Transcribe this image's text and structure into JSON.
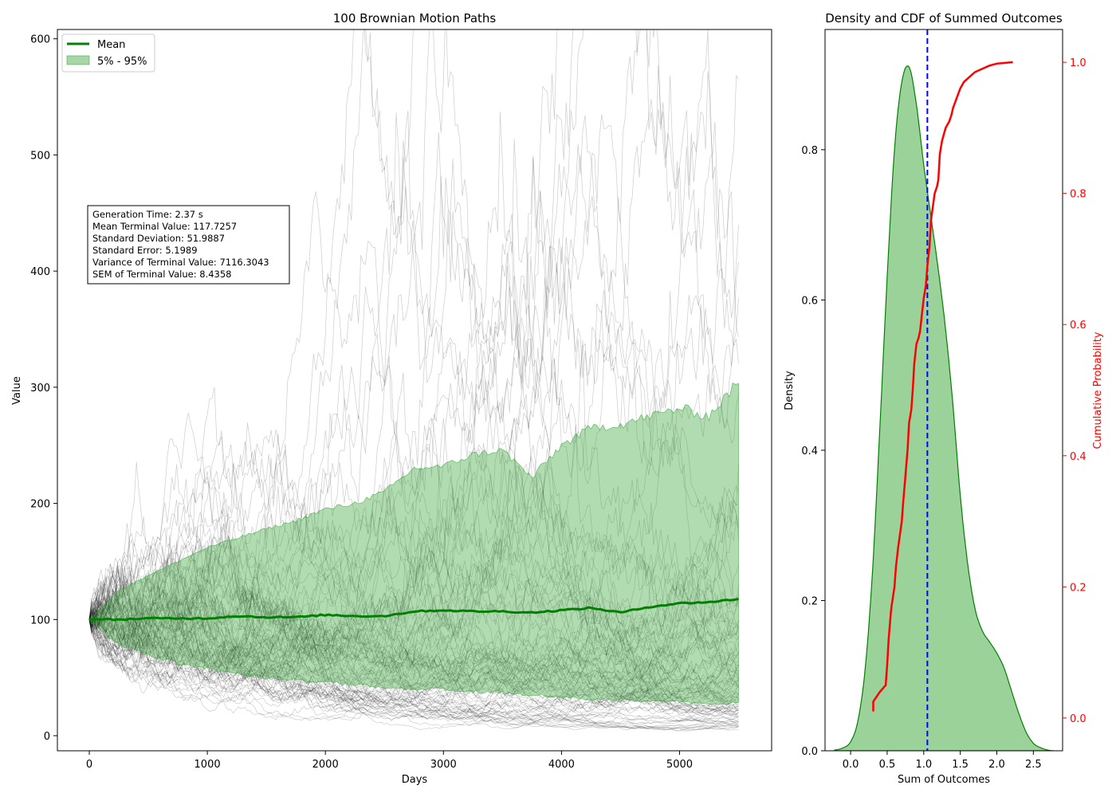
{
  "chart_data": [
    {
      "type": "line",
      "title": "100 Brownian Motion Paths",
      "xlabel": "Days",
      "ylabel": "Value",
      "xlim": [
        -270,
        5780
      ],
      "ylim": [
        -13,
        608
      ],
      "xticks": [
        0,
        1000,
        2000,
        3000,
        4000,
        5000
      ],
      "yticks": [
        0,
        100,
        200,
        300,
        400,
        500,
        600
      ],
      "grid": false,
      "legend_position": "top-left",
      "n_paths": 100,
      "n_days": 5500,
      "start_value": 100,
      "series": [
        {
          "name": "Mean",
          "color": "#008000",
          "x": [
            0,
            250,
            500,
            750,
            1000,
            1250,
            1500,
            1750,
            2000,
            2250,
            2500,
            2750,
            3000,
            3250,
            3500,
            3750,
            4000,
            4250,
            4500,
            4750,
            5000,
            5250,
            5500
          ],
          "values": [
            100,
            100,
            101,
            101,
            101,
            103,
            102,
            102,
            104,
            103,
            103,
            107,
            108,
            107,
            107,
            106,
            108,
            110,
            106,
            111,
            114,
            115,
            117.7
          ]
        },
        {
          "name": "5% - 95%",
          "type": "area",
          "color": "#2ca02c",
          "x": [
            0,
            250,
            500,
            750,
            1000,
            1250,
            1500,
            1750,
            2000,
            2250,
            2500,
            2750,
            3000,
            3250,
            3500,
            3750,
            4000,
            4250,
            4500,
            4750,
            5000,
            5250,
            5500
          ],
          "upper": [
            100,
            125,
            138,
            150,
            162,
            170,
            178,
            185,
            195,
            200,
            210,
            230,
            232,
            242,
            246,
            222,
            250,
            265,
            268,
            275,
            282,
            275,
            305
          ],
          "lower": [
            100,
            78,
            70,
            62,
            58,
            53,
            50,
            48,
            46,
            44,
            42,
            40,
            40,
            38,
            37,
            35,
            34,
            32,
            31,
            30,
            29,
            28,
            28
          ]
        }
      ],
      "annotation": [
        "Generation Time: 2.37 s",
        "Mean Terminal Value: 117.7257",
        "Standard Deviation: 51.9887",
        "Standard Error: 5.1989",
        "Variance of Terminal Value: 7116.3043",
        "SEM of Terminal Value: 8.4358"
      ]
    },
    {
      "type": "area",
      "title": "Density and CDF of Summed Outcomes",
      "xlabel": "Sum of Outcomes",
      "ylabel": "Density",
      "y2label": "Cumulative Probability",
      "xlim": [
        -0.35,
        2.9
      ],
      "ylim": [
        0,
        0.96
      ],
      "y2lim": [
        -0.05,
        1.05
      ],
      "xticks": [
        "0.0",
        "0.5",
        "1.0",
        "1.5",
        "2.0",
        "2.5"
      ],
      "yticks": [
        "0.0",
        "0.2",
        "0.4",
        "0.6",
        "0.8"
      ],
      "y2ticks": [
        "0.0",
        "0.2",
        "0.4",
        "0.6",
        "0.8",
        "1.0"
      ],
      "density": {
        "color": "#008000",
        "x": [
          -0.22,
          -0.1,
          0.0,
          0.1,
          0.2,
          0.3,
          0.4,
          0.5,
          0.6,
          0.7,
          0.8,
          0.9,
          1.0,
          1.1,
          1.2,
          1.3,
          1.4,
          1.5,
          1.6,
          1.7,
          1.8,
          1.9,
          2.0,
          2.1,
          2.2,
          2.3,
          2.4,
          2.5,
          2.6,
          2.7,
          2.78
        ],
        "values": [
          0.001,
          0.004,
          0.012,
          0.04,
          0.11,
          0.24,
          0.43,
          0.63,
          0.8,
          0.89,
          0.91,
          0.86,
          0.78,
          0.71,
          0.64,
          0.56,
          0.46,
          0.34,
          0.25,
          0.19,
          0.16,
          0.145,
          0.13,
          0.11,
          0.08,
          0.05,
          0.025,
          0.01,
          0.004,
          0.001,
          0.0
        ]
      },
      "mean_line": {
        "x": 1.05,
        "color": "#0000ff",
        "style": "dashed"
      },
      "cdf": {
        "color": "#ff0000",
        "x": [
          0.31,
          0.31,
          0.4,
          0.48,
          0.5,
          0.52,
          0.55,
          0.56,
          0.6,
          0.62,
          0.65,
          0.7,
          0.72,
          0.75,
          0.78,
          0.8,
          0.83,
          0.85,
          0.87,
          0.9,
          0.93,
          0.95,
          0.97,
          1.0,
          1.03,
          1.05,
          1.08,
          1.1,
          1.15,
          1.18,
          1.2,
          1.22,
          1.25,
          1.3,
          1.35,
          1.38,
          1.4,
          1.45,
          1.5,
          1.55,
          1.6,
          1.65,
          1.7,
          1.8,
          1.9,
          2.0,
          2.1,
          2.2,
          2.22
        ],
        "values": [
          0.01,
          0.025,
          0.04,
          0.05,
          0.08,
          0.12,
          0.16,
          0.17,
          0.2,
          0.23,
          0.26,
          0.3,
          0.33,
          0.37,
          0.41,
          0.45,
          0.47,
          0.5,
          0.54,
          0.57,
          0.58,
          0.59,
          0.61,
          0.64,
          0.66,
          0.69,
          0.72,
          0.76,
          0.8,
          0.81,
          0.82,
          0.86,
          0.88,
          0.9,
          0.91,
          0.92,
          0.93,
          0.945,
          0.96,
          0.97,
          0.975,
          0.98,
          0.985,
          0.99,
          0.995,
          0.998,
          0.999,
          1.0,
          1.0
        ]
      }
    }
  ],
  "legend": [
    {
      "label": "Mean",
      "kind": "line",
      "color": "#008000"
    },
    {
      "label": "5% - 95%",
      "kind": "patch",
      "color": "#a9d6a9"
    }
  ],
  "colors": {
    "paths": "#000000",
    "cdf_axis": "#ff0000"
  }
}
